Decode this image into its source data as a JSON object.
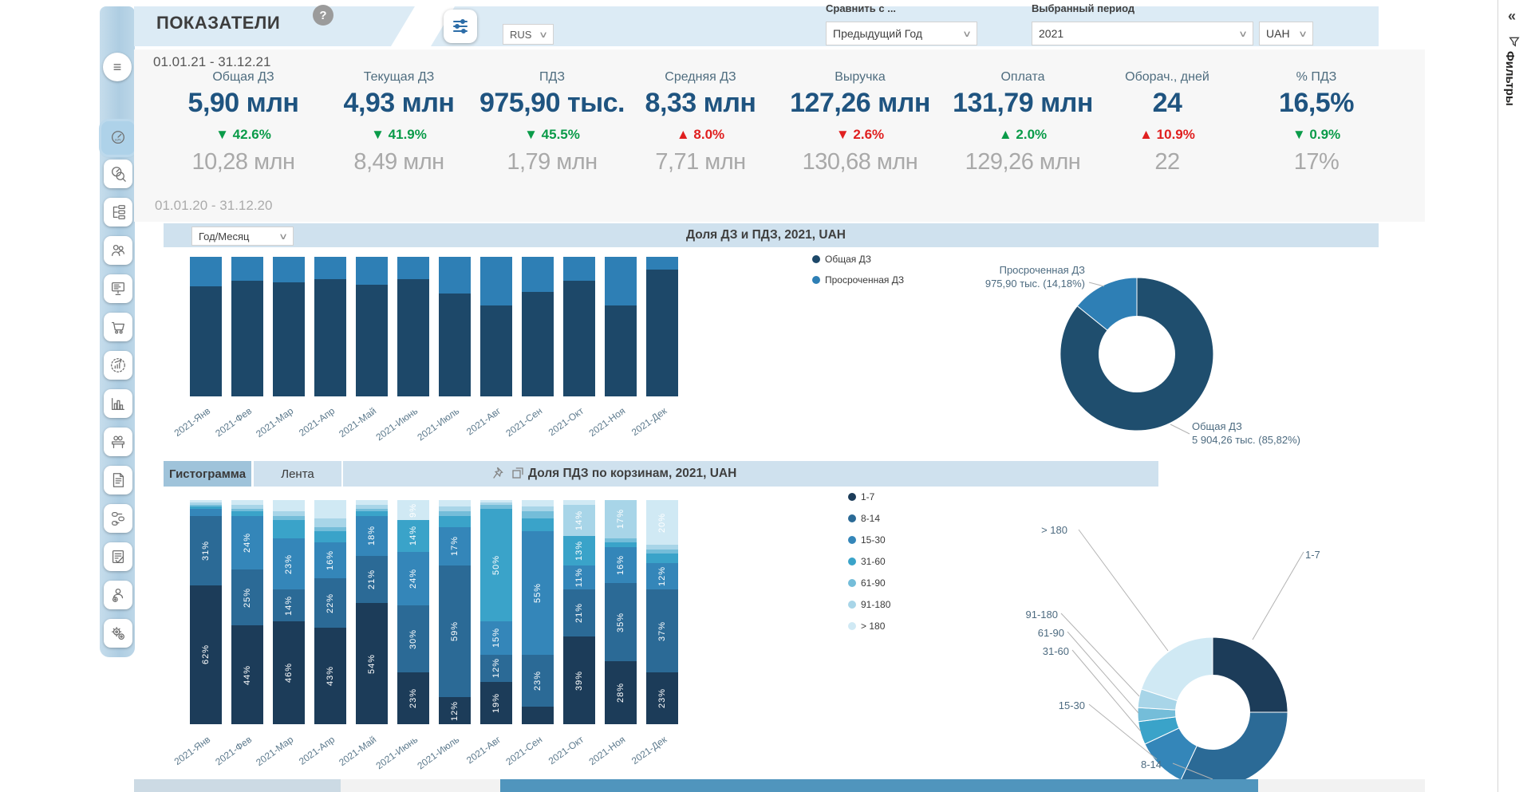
{
  "header": {
    "title": "ПОКАЗАТЕЛИ",
    "help": "?",
    "language": "RUS",
    "compare_label": "Сравнить с ...",
    "compare_value": "Предыдущий Год",
    "period_label": "Выбранный период",
    "period_value": "2021",
    "currency": "UAH"
  },
  "filters_pane": {
    "collapse_glyph": "«",
    "title": "Фильтры"
  },
  "sidebar": {
    "icons": [
      "menu",
      "kpi-dashboard",
      "kpi-analysis",
      "process-flow",
      "customers",
      "report-board",
      "purchases",
      "sales-growth",
      "bar-analytics",
      "meeting",
      "documents",
      "pipeline",
      "contracts",
      "debtors",
      "settings"
    ],
    "active": "kpi-dashboard"
  },
  "kpi_panel": {
    "period_current": "01.01.21 - 31.12.21",
    "period_prior": "01.01.20 - 31.12.20",
    "cards": [
      {
        "label": "Общая ДЗ",
        "value": "5,90 млн",
        "delta": "42.6%",
        "dir": "down",
        "tone": "good",
        "prior": "10,28 млн"
      },
      {
        "label": "Текущая ДЗ",
        "value": "4,93 млн",
        "delta": "41.9%",
        "dir": "down",
        "tone": "good",
        "prior": "8,49 млн"
      },
      {
        "label": "ПДЗ",
        "value": "975,90 тыс.",
        "delta": "45.5%",
        "dir": "down",
        "tone": "good",
        "prior": "1,79 млн"
      },
      {
        "label": "Средняя ДЗ",
        "value": "8,33 млн",
        "delta": "8.0%",
        "dir": "up",
        "tone": "bad",
        "prior": "7,71 млн"
      },
      {
        "label": "Выручка",
        "value": "127,26 млн",
        "delta": "2.6%",
        "dir": "down",
        "tone": "bad",
        "prior": "130,68 млн"
      },
      {
        "label": "Оплата",
        "value": "131,79 млн",
        "delta": "2.0%",
        "dir": "up",
        "tone": "good",
        "prior": "129,26 млн"
      },
      {
        "label": "Оборач., дней",
        "value": "24",
        "delta": "10.9%",
        "dir": "up",
        "tone": "bad",
        "prior": "22"
      },
      {
        "label": "% ПДЗ",
        "value": "16,5%",
        "delta": "0.9%",
        "dir": "down",
        "tone": "good",
        "prior": "17%"
      }
    ]
  },
  "section1": {
    "selector_value": "Год/Месяц"
  },
  "section2": {
    "tabs": [
      "Гистограмма",
      "Лента"
    ],
    "active_tab": "Гистограмма"
  },
  "palette": {
    "good": "#0a9b49",
    "bad": "#e01f1f"
  },
  "chart_data": [
    {
      "id": "dz_pdz_monthly",
      "type": "bar",
      "stacked_percent": true,
      "title": "Доля ДЗ и ПДЗ, 2021, UAH",
      "categories": [
        "2021-Янв",
        "2021-Фев",
        "2021-Мар",
        "2021-Апр",
        "2021-Май",
        "2021-Июнь",
        "2021-Июль",
        "2021-Авг",
        "2021-Сен",
        "2021-Окт",
        "2021-Ноя",
        "2021-Дек"
      ],
      "series": [
        {
          "name": "Общая ДЗ",
          "color": "#1d4869",
          "values": [
            79,
            83,
            82,
            84,
            80,
            84,
            74,
            65,
            75,
            83,
            65,
            91
          ]
        },
        {
          "name": "Просроченная ДЗ",
          "color": "#2e7fb5",
          "values": [
            21,
            17,
            18,
            16,
            20,
            16,
            26,
            35,
            25,
            17,
            35,
            9
          ]
        }
      ],
      "ylim": [
        0,
        100
      ],
      "legend_position": "right"
    },
    {
      "id": "dz_pdz_share",
      "type": "pie",
      "title": "Доля ДЗ и ПДЗ, 2021, UAH",
      "slices": [
        {
          "label": "Общая ДЗ",
          "text": "5 904,26 тыс. (85,82%)",
          "value": 85.82,
          "color": "#1f4e6e"
        },
        {
          "label": "Просроченная ДЗ",
          "text": "975,90 тыс. (14,18%)",
          "value": 14.18,
          "color": "#2e7fb5"
        }
      ]
    },
    {
      "id": "pdz_buckets_monthly",
      "type": "bar",
      "stacked_percent": true,
      "title": "Доля ПДЗ по корзинам, 2021, UAH",
      "categories": [
        "2021-Янв",
        "2021-Фев",
        "2021-Мар",
        "2021-Апр",
        "2021-Май",
        "2021-Июнь",
        "2021-Июль",
        "2021-Авг",
        "2021-Сен",
        "2021-Окт",
        "2021-Ноя",
        "2021-Дек"
      ],
      "series": [
        {
          "name": "1-7",
          "color": "#1c3c59",
          "values": [
            62,
            44,
            46,
            43,
            54,
            23,
            12,
            19,
            8,
            39,
            28,
            23
          ]
        },
        {
          "name": "8-14",
          "color": "#2b6a96",
          "values": [
            31,
            25,
            14,
            22,
            21,
            30,
            59,
            12,
            23,
            21,
            35,
            37
          ]
        },
        {
          "name": "15-30",
          "color": "#3486b9",
          "values": [
            3,
            24,
            23,
            16,
            18,
            24,
            17,
            15,
            55,
            11,
            16,
            12
          ]
        },
        {
          "name": "31-60",
          "color": "#3aa3c9",
          "values": [
            1,
            2,
            8,
            5,
            2,
            14,
            5,
            50,
            6,
            13,
            2,
            4
          ]
        },
        {
          "name": "61-90",
          "color": "#74bdd9",
          "values": [
            1,
            1,
            2,
            2,
            1,
            0,
            2,
            2,
            3,
            0,
            2,
            2
          ]
        },
        {
          "name": "91-180",
          "color": "#a8d5e8",
          "values": [
            1,
            2,
            2,
            4,
            2,
            0,
            2,
            1,
            2,
            14,
            17,
            2
          ]
        },
        {
          "name": "> 180",
          "color": "#d0e9f4",
          "values": [
            1,
            2,
            5,
            8,
            2,
            9,
            3,
            1,
            3,
            2,
            0,
            20
          ]
        }
      ],
      "ylim": [
        0,
        100
      ],
      "label_threshold_pct": 9,
      "legend_position": "right"
    },
    {
      "id": "pdz_buckets_share",
      "type": "pie",
      "title": "Доля ПДЗ по корзинам, 2021, UAH",
      "slices": [
        {
          "label": "1-7",
          "value": 25,
          "color": "#1c3c59"
        },
        {
          "label": "8-14",
          "value": 32,
          "color": "#2b6a96"
        },
        {
          "label": "15-30",
          "value": 11,
          "color": "#3486b9"
        },
        {
          "label": "31-60",
          "value": 5,
          "color": "#3aa3c9"
        },
        {
          "label": "61-90",
          "value": 3,
          "color": "#74bdd9"
        },
        {
          "label": "91-180",
          "value": 4,
          "color": "#a8d5e8"
        },
        {
          "label": "> 180",
          "value": 20,
          "color": "#d0e9f4"
        }
      ]
    }
  ]
}
